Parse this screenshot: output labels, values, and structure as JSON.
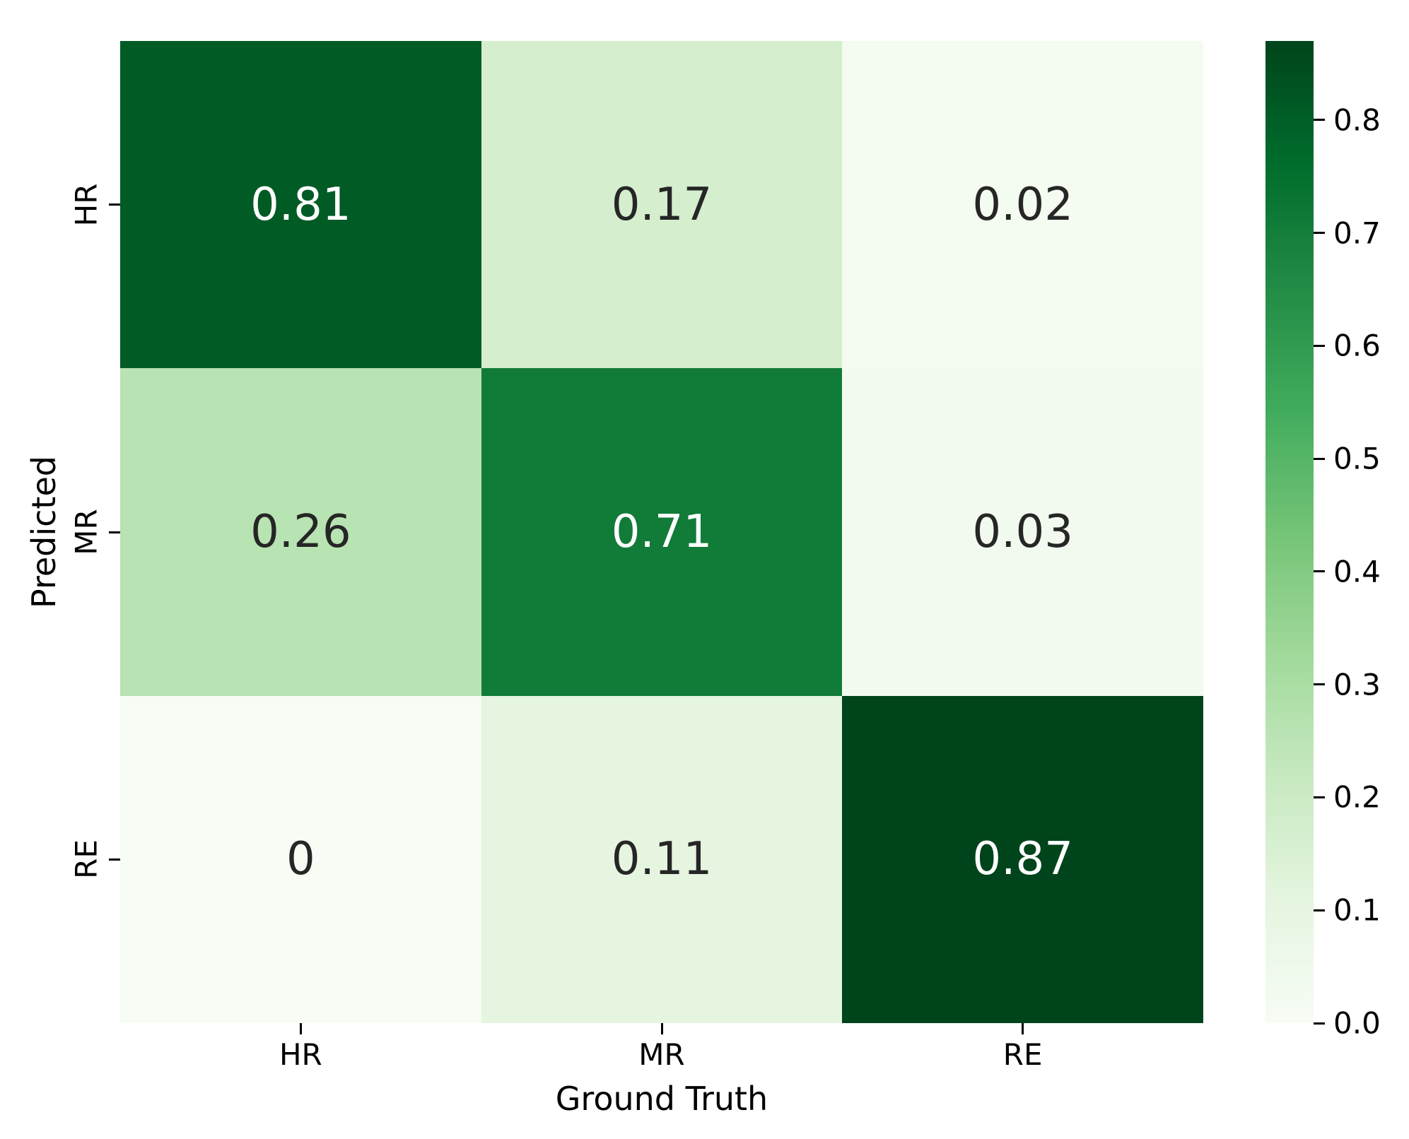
{
  "chart_data": {
    "type": "heatmap",
    "title": "",
    "xlabel": "Ground Truth",
    "ylabel": "Predicted",
    "x_labels": [
      "HR",
      "MR",
      "RE"
    ],
    "y_labels": [
      "HR",
      "MR",
      "RE"
    ],
    "values": [
      [
        0.81,
        0.17,
        0.02
      ],
      [
        0.26,
        0.71,
        0.03
      ],
      [
        0.0,
        0.11,
        0.87
      ]
    ],
    "annotations": [
      [
        "0.81",
        "0.17",
        "0.02"
      ],
      [
        "0.26",
        "0.71",
        "0.03"
      ],
      [
        "0",
        "0.11",
        "0.87"
      ]
    ],
    "cell_colors": [
      [
        "#005b24",
        "#d4eece",
        "#f4fbf1"
      ],
      [
        "#b8e3b2",
        "#117b38",
        "#f2faef"
      ],
      [
        "#f7fcf5",
        "#e5f5e0",
        "#00441b"
      ]
    ],
    "text_colors": [
      [
        "#ffffff",
        "#262626",
        "#262626"
      ],
      [
        "#262626",
        "#ffffff",
        "#262626"
      ],
      [
        "#262626",
        "#262626",
        "#ffffff"
      ]
    ],
    "colormap": "Greens",
    "vmin": 0.0,
    "vmax": 0.87,
    "grid": false,
    "legend_position": "right-colorbar",
    "colorbar": {
      "ticks": [
        {
          "label": "0.8",
          "value": 0.8
        },
        {
          "label": "0.7",
          "value": 0.7
        },
        {
          "label": "0.6",
          "value": 0.6
        },
        {
          "label": "0.5",
          "value": 0.5
        },
        {
          "label": "0.4",
          "value": 0.4
        },
        {
          "label": "0.3",
          "value": 0.3
        },
        {
          "label": "0.2",
          "value": 0.2
        },
        {
          "label": "0.1",
          "value": 0.1
        },
        {
          "label": "0.0",
          "value": 0.0
        }
      ],
      "gradient_stops": [
        {
          "pos": 0.0,
          "color": "#f7fcf5"
        },
        {
          "pos": 0.125,
          "color": "#e5f5e0"
        },
        {
          "pos": 0.25,
          "color": "#c7e9c0"
        },
        {
          "pos": 0.375,
          "color": "#a1d99b"
        },
        {
          "pos": 0.5,
          "color": "#74c476"
        },
        {
          "pos": 0.625,
          "color": "#41ab5d"
        },
        {
          "pos": 0.75,
          "color": "#238b45"
        },
        {
          "pos": 0.875,
          "color": "#006d2c"
        },
        {
          "pos": 1.0,
          "color": "#00441b"
        }
      ]
    }
  }
}
